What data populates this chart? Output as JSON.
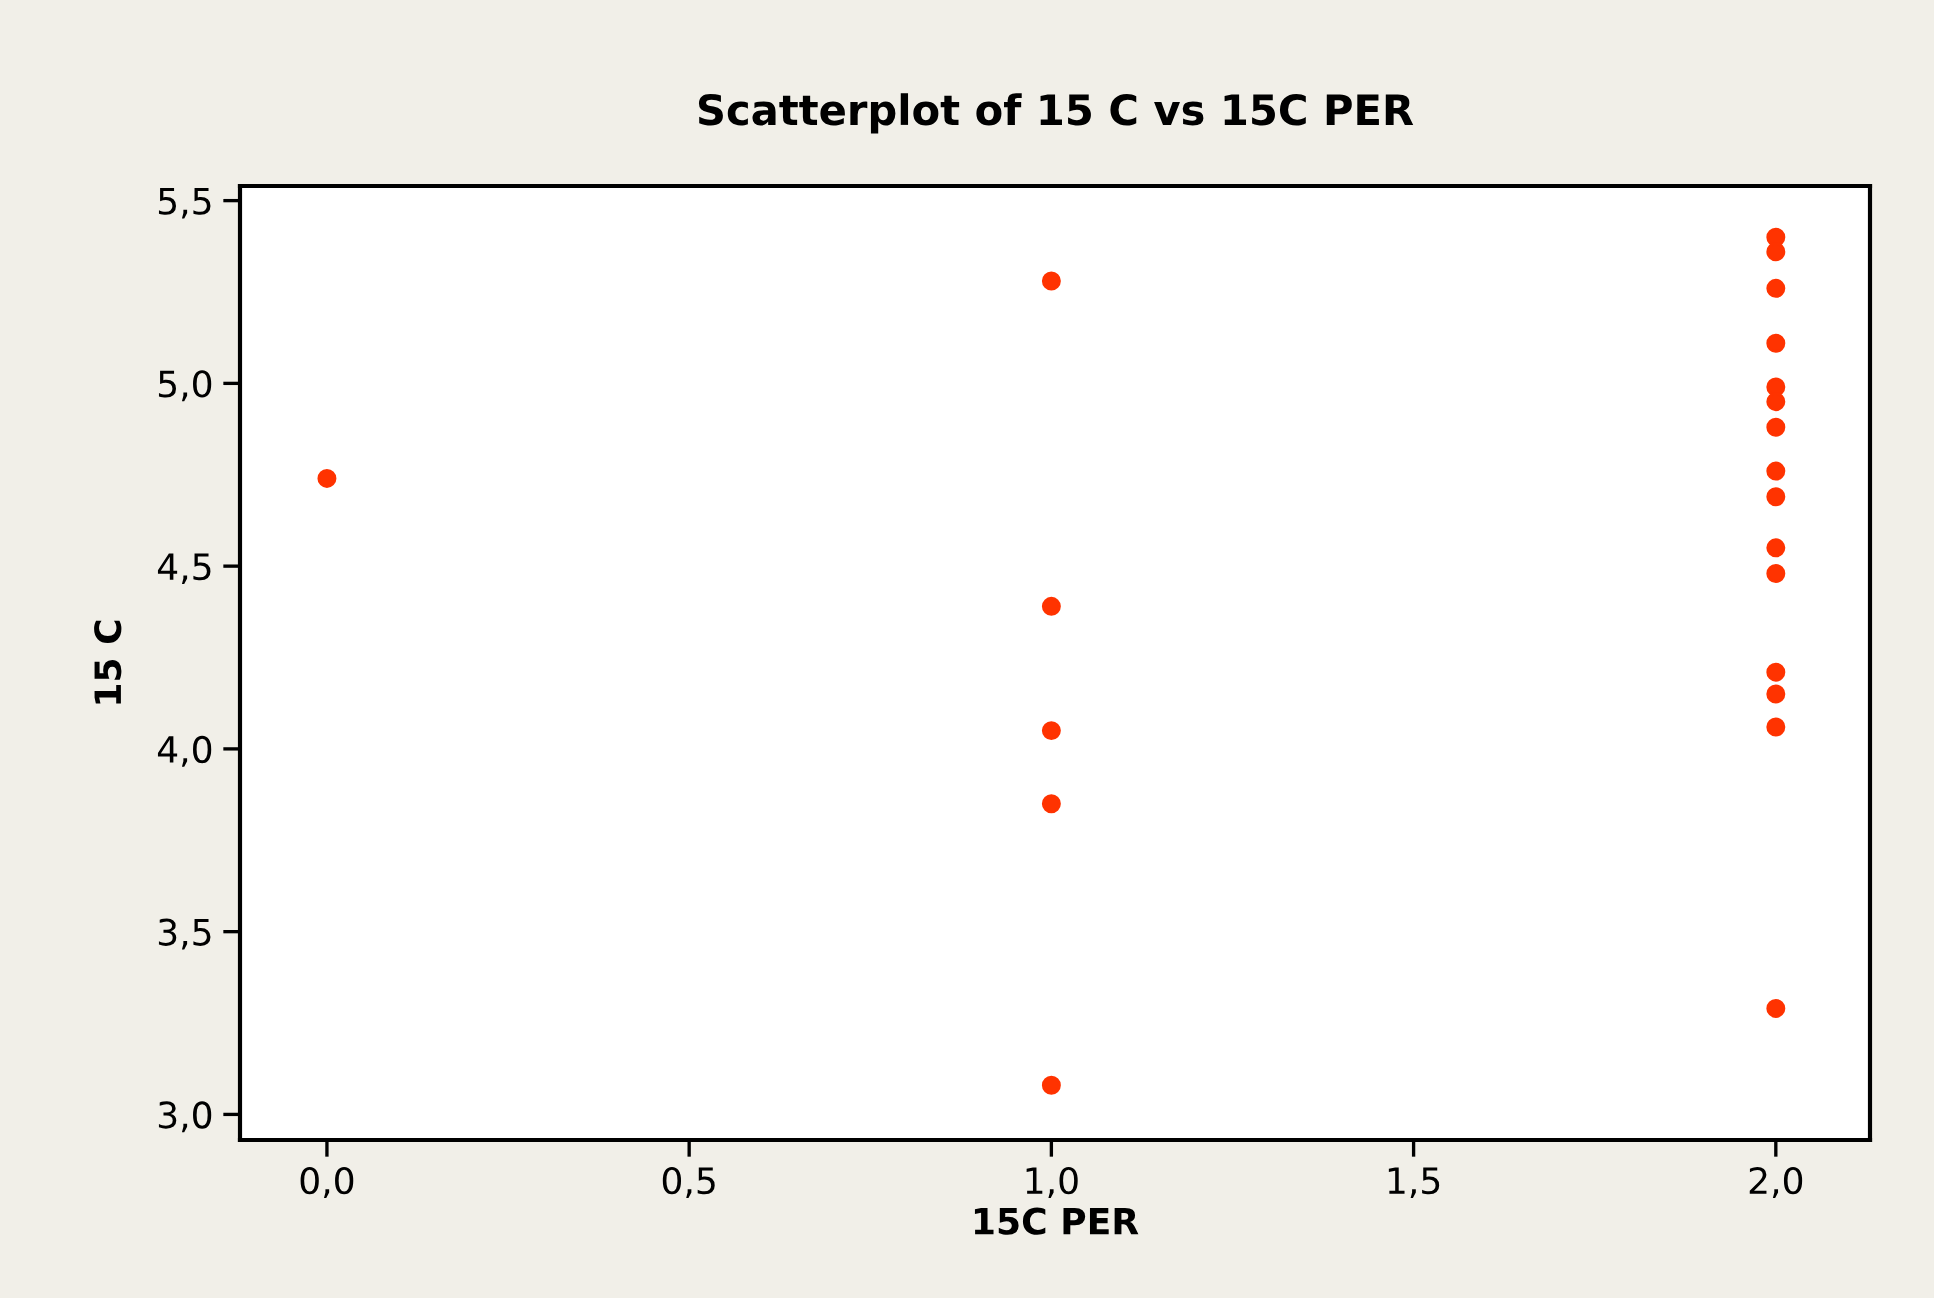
{
  "chart_data": {
    "type": "scatter",
    "title": "Scatterplot of 15 C vs 15C PER",
    "xlabel": "15C PER",
    "ylabel": "15 C",
    "series": [
      {
        "color": "#ff3300",
        "x": [
          0,
          1,
          1,
          1,
          1,
          1,
          2,
          2,
          2,
          2,
          2,
          2,
          2,
          2,
          2,
          2,
          2,
          2,
          2,
          2,
          2
        ],
        "values": [
          4.74,
          5.28,
          4.39,
          4.05,
          3.85,
          3.08,
          5.4,
          5.36,
          5.26,
          5.11,
          4.99,
          4.95,
          4.88,
          4.76,
          4.69,
          4.55,
          4.48,
          4.21,
          4.15,
          4.06,
          3.29
        ]
      }
    ],
    "xlim": [
      -0.12,
      2.13
    ],
    "ylim": [
      2.93,
      5.54
    ],
    "xticks": [
      {
        "value": 0,
        "label": "0,0"
      },
      {
        "value": 0.5,
        "label": "0,5"
      },
      {
        "value": 1,
        "label": "1,0"
      },
      {
        "value": 1.5,
        "label": "1,5"
      },
      {
        "value": 2,
        "label": "2,0"
      }
    ],
    "yticks": [
      {
        "value": 3,
        "label": "3,0"
      },
      {
        "value": 3.5,
        "label": "3,5"
      },
      {
        "value": 4,
        "label": "4,0"
      },
      {
        "value": 4.5,
        "label": "4,5"
      },
      {
        "value": 5,
        "label": "5,0"
      },
      {
        "value": 5.5,
        "label": "5,5"
      }
    ],
    "marker": "circle",
    "grid": false,
    "legend": false
  }
}
